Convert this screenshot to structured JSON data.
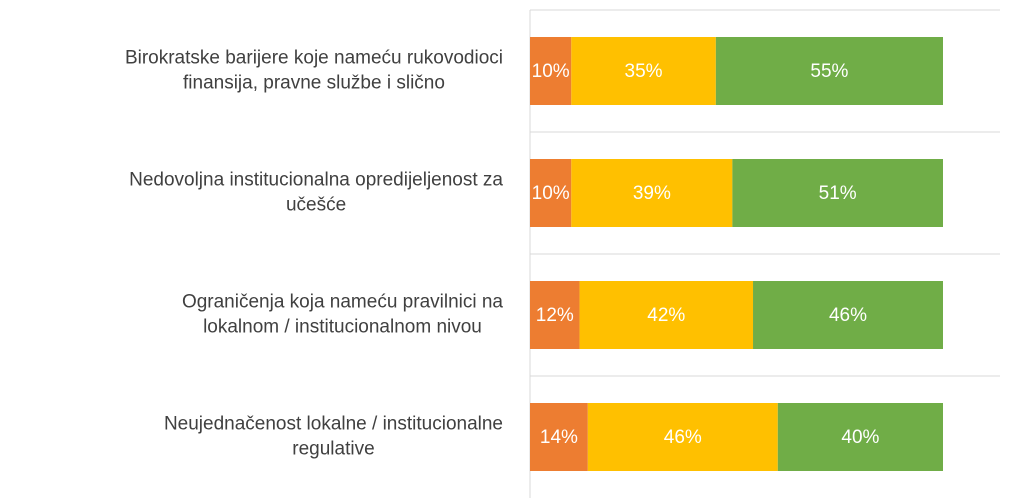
{
  "chart_data": {
    "type": "stacked_bar_horizontal",
    "categories": [
      "Birokratske barijere koje nameću rukovodioci\nfinansija, pravne službe i slično",
      "Nedovoljna institucionalna opredijeljenost za\nučešće",
      "Ograničenja koja nameću pravilnici na\nlokalnom / institucionalnom nivou",
      "Neujednačenost lokalne / institucionalne\nregulative"
    ],
    "series": [
      {
        "color": "#ed7d31",
        "values": [
          10,
          10,
          12,
          14
        ],
        "value_labels": [
          "10%",
          "10%",
          "12%",
          "14%"
        ]
      },
      {
        "color": "#ffc000",
        "values": [
          35,
          39,
          42,
          46
        ],
        "value_labels": [
          "35%",
          "39%",
          "42%",
          "46%"
        ]
      },
      {
        "color": "#70ad47",
        "values": [
          55,
          51,
          46,
          40
        ],
        "value_labels": [
          "55%",
          "51%",
          "46%",
          "40%"
        ]
      }
    ],
    "xlim": [
      0,
      100
    ]
  }
}
